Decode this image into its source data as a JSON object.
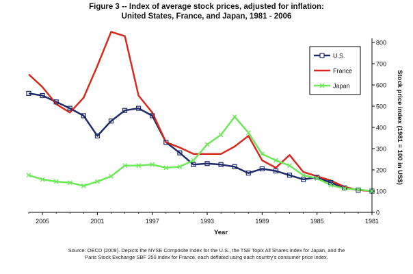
{
  "figure": {
    "title_line1": "Figure 3 -- Index of average stock prices, adjusted for inflation:",
    "title_line2": "United States, France, and Japan, 1981 - 2006",
    "source_line1": "Source: OECD (2009). Depicts the NYSE Composite index for the U.S., the TSE Topix All Shares index for Japan, and the",
    "source_line2": "Paris Stock Exchange SBF 250 index for France, each deflated using each country's consumer price index."
  },
  "chart_data": {
    "type": "line",
    "mirrored": true,
    "xlabel": "Year",
    "ylabel": "Stock price index (1981 = 100 in US$)",
    "xlim": [
      1981,
      2006
    ],
    "ylim": [
      0,
      800
    ],
    "x_ticks": [
      "1981",
      "1985",
      "1989",
      "1993",
      "1997",
      "2001",
      "2005"
    ],
    "y_ticks": [
      "0",
      "100",
      "200",
      "300",
      "400",
      "500",
      "600",
      "700",
      "800"
    ],
    "grid": false,
    "legend_position": "top-right",
    "x": [
      1981,
      1982,
      1983,
      1984,
      1985,
      1986,
      1987,
      1988,
      1989,
      1990,
      1991,
      1992,
      1993,
      1994,
      1995,
      1996,
      1997,
      1998,
      1999,
      2000,
      2001,
      2002,
      2003,
      2004,
      2005,
      2006
    ],
    "series": [
      {
        "name": "U.S.",
        "color": "#1f2a6b",
        "marker": "square",
        "values": [
          100,
          105,
          115,
          140,
          165,
          155,
          175,
          195,
          205,
          185,
          215,
          225,
          230,
          225,
          280,
          330,
          455,
          490,
          480,
          430,
          360,
          455,
          490,
          520,
          550,
          560
        ]
      },
      {
        "name": "France",
        "color": "#d62a1f",
        "marker": "none",
        "values": [
          100,
          105,
          120,
          150,
          170,
          190,
          270,
          210,
          245,
          360,
          310,
          275,
          275,
          275,
          305,
          330,
          470,
          550,
          830,
          850,
          690,
          540,
          470,
          510,
          590,
          650
        ]
      },
      {
        "name": "Japan",
        "color": "#6ee85a",
        "marker": "cross",
        "values": [
          100,
          108,
          112,
          128,
          160,
          175,
          220,
          245,
          275,
          375,
          450,
          365,
          320,
          245,
          215,
          210,
          225,
          220,
          220,
          170,
          145,
          125,
          140,
          145,
          155,
          175
        ]
      }
    ]
  }
}
